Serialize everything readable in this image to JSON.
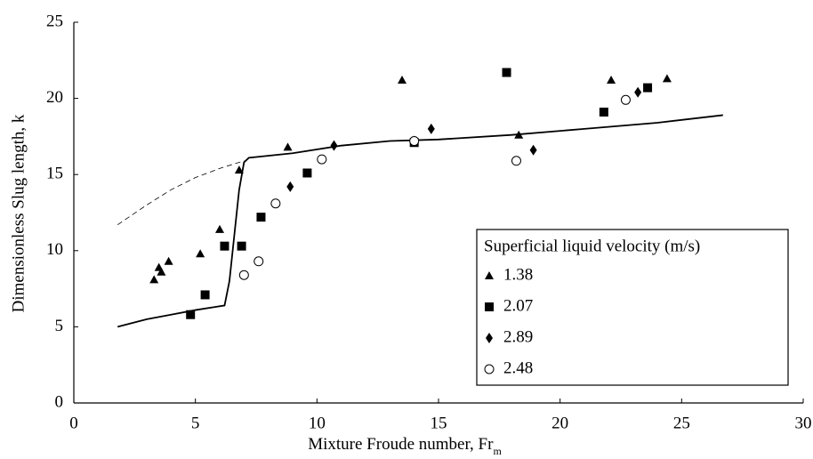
{
  "chart_data": {
    "type": "scatter",
    "x_label": "Mixture Froude number, Fr",
    "x_label_sub": "m",
    "y_label": "Dimensionless Slug length, k",
    "xlim": [
      0,
      30
    ],
    "ylim": [
      0,
      25
    ],
    "xticks": [
      0,
      5,
      10,
      15,
      20,
      25,
      30
    ],
    "yticks": [
      0,
      5,
      10,
      15,
      20,
      25
    ],
    "legend": "lower right",
    "legend_title": "Superficial liquid velocity (m/s)",
    "series": [
      {
        "name": "1.38",
        "marker": "triangle",
        "color": "#000000",
        "x": [
          3.3,
          3.5,
          3.6,
          3.9,
          5.2,
          6.0,
          6.8,
          8.8,
          13.5,
          18.3,
          22.1,
          24.4
        ],
        "values": [
          8.1,
          8.9,
          8.6,
          9.3,
          9.8,
          11.4,
          15.3,
          16.8,
          21.2,
          17.6,
          21.2,
          21.3
        ]
      },
      {
        "name": "2.07",
        "marker": "square",
        "color": "#000000",
        "x": [
          4.8,
          5.4,
          6.2,
          6.9,
          7.7,
          9.6,
          14.0,
          17.8,
          21.8,
          23.6
        ],
        "values": [
          5.8,
          7.1,
          10.3,
          10.3,
          12.2,
          15.1,
          17.1,
          21.7,
          19.1,
          20.7
        ]
      },
      {
        "name": "2.89",
        "marker": "diamond",
        "color": "#000000",
        "x": [
          8.9,
          10.7,
          14.0,
          14.7,
          18.9,
          23.2
        ],
        "values": [
          14.2,
          16.9,
          17.2,
          18.0,
          16.6,
          20.4
        ]
      },
      {
        "name": "2.48",
        "marker": "circle",
        "color": "#000000",
        "x": [
          7.0,
          7.6,
          8.3,
          10.2,
          14.0,
          18.2,
          22.7
        ],
        "values": [
          8.4,
          9.3,
          13.1,
          16.0,
          17.2,
          15.9,
          19.9
        ]
      }
    ],
    "lines": [
      {
        "style": "solid",
        "x": [
          1.8,
          3,
          4,
          5,
          5.8,
          6.2,
          6.4,
          6.6,
          6.8,
          7.0,
          7.2,
          9,
          11,
          13,
          15,
          18,
          21,
          24,
          26.7
        ],
        "values": [
          5.0,
          5.5,
          5.8,
          6.1,
          6.3,
          6.4,
          8,
          11,
          14,
          15.8,
          16.1,
          16.4,
          16.9,
          17.2,
          17.3,
          17.6,
          18.0,
          18.4,
          18.9
        ]
      },
      {
        "style": "dashed",
        "x": [
          1.8,
          3,
          4,
          5,
          6,
          7
        ],
        "values": [
          11.7,
          13,
          14,
          14.8,
          15.4,
          15.9
        ]
      }
    ]
  }
}
